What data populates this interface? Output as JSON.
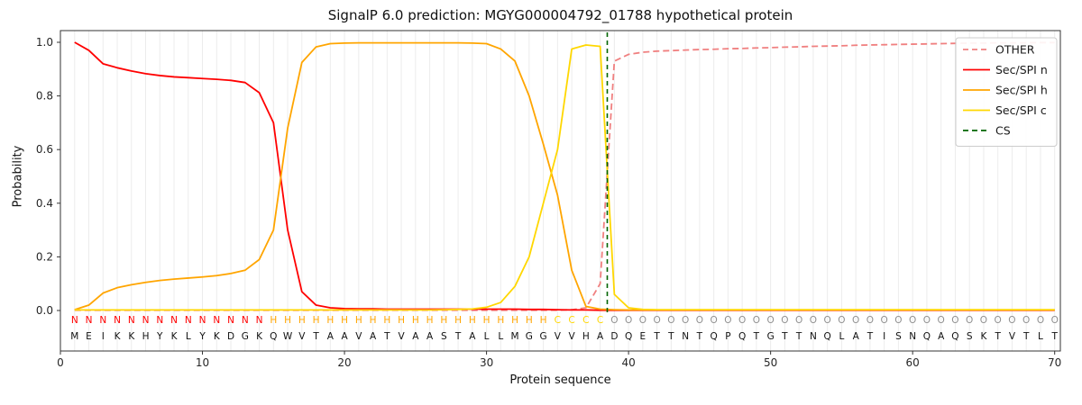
{
  "chart_data": {
    "type": "line",
    "title": "SignalP 6.0 prediction: MGYG000004792_01788 hypothetical protein",
    "xlabel": "Protein sequence",
    "ylabel": "Probability",
    "xlim": [
      0,
      70.4
    ],
    "ylim": [
      -0.15,
      1.04
    ],
    "xticks": [
      0,
      10,
      20,
      30,
      40,
      50,
      60,
      70
    ],
    "yticks": [
      0.0,
      0.2,
      0.4,
      0.6,
      0.8,
      1.0
    ],
    "grid": "vertical-per-residue",
    "grid_color": "#ececec",
    "legend_position": "upper right",
    "sequence": "MEIKKHYKLYKDGKQWVTAAVATVAASTALLMGGVVHADQETTNTQPQTGTTNQLATISNQAQSKTVTLT",
    "region_labels": "NNNNNNNNNNNNNNHHHHHHHHHHHHHHHHHHHHCCCCOOOOOOOOOOOOOOOOOOOOOOOOOOOOOOOO",
    "region_colors": {
      "N": "#ff0000",
      "H": "#ffa500",
      "C": "#ffd700",
      "O": "#8f8f8f"
    },
    "series": [
      {
        "name": "OTHER",
        "color": "#f08080",
        "dash": true,
        "values": [
          0.001,
          0.001,
          0.001,
          0.001,
          0.001,
          0.001,
          0.001,
          0.001,
          0.001,
          0.001,
          0.001,
          0.001,
          0.001,
          0.001,
          0.001,
          0.001,
          0.001,
          0.001,
          0.001,
          0.001,
          0.001,
          0.001,
          0.001,
          0.001,
          0.001,
          0.001,
          0.001,
          0.001,
          0.001,
          0.001,
          0.001,
          0.001,
          0.001,
          0.001,
          0.001,
          0.003,
          0.01,
          0.1,
          0.93,
          0.955,
          0.963,
          0.967,
          0.969,
          0.971,
          0.973,
          0.974,
          0.976,
          0.977,
          0.979,
          0.98,
          0.982,
          0.983,
          0.985,
          0.986,
          0.987,
          0.989,
          0.99,
          0.991,
          0.992,
          0.993,
          0.994,
          0.995,
          0.996,
          0.997,
          0.997,
          0.998,
          0.998,
          0.998,
          0.999,
          0.999
        ]
      },
      {
        "name": "Sec/SPI n",
        "color": "#ff0000",
        "dash": false,
        "values": [
          1.0,
          0.97,
          0.92,
          0.905,
          0.893,
          0.883,
          0.876,
          0.871,
          0.868,
          0.865,
          0.862,
          0.858,
          0.85,
          0.812,
          0.7,
          0.3,
          0.07,
          0.02,
          0.01,
          0.007,
          0.006,
          0.006,
          0.005,
          0.005,
          0.005,
          0.005,
          0.005,
          0.005,
          0.005,
          0.005,
          0.005,
          0.005,
          0.004,
          0.004,
          0.003,
          0.002,
          0.002,
          0.001,
          0.001,
          0.001,
          0.001,
          0.001,
          0.001,
          0.001,
          0.001,
          0.001,
          0.001,
          0.001,
          0.001,
          0.001,
          0.001,
          0.001,
          0.001,
          0.001,
          0.001,
          0.001,
          0.001,
          0.001,
          0.001,
          0.001,
          0.001,
          0.001,
          0.001,
          0.001,
          0.001,
          0.001,
          0.001,
          0.001,
          0.001,
          0.001
        ]
      },
      {
        "name": "Sec/SPI h",
        "color": "#ffa500",
        "dash": false,
        "values": [
          0.003,
          0.02,
          0.065,
          0.085,
          0.096,
          0.105,
          0.112,
          0.117,
          0.121,
          0.125,
          0.13,
          0.138,
          0.15,
          0.19,
          0.3,
          0.68,
          0.925,
          0.983,
          0.995,
          0.997,
          0.998,
          0.998,
          0.998,
          0.998,
          0.998,
          0.998,
          0.998,
          0.998,
          0.997,
          0.995,
          0.975,
          0.93,
          0.8,
          0.62,
          0.43,
          0.15,
          0.015,
          0.005,
          0.003,
          0.002,
          0.002,
          0.002,
          0.002,
          0.002,
          0.002,
          0.002,
          0.002,
          0.002,
          0.002,
          0.002,
          0.002,
          0.002,
          0.002,
          0.002,
          0.002,
          0.002,
          0.002,
          0.002,
          0.002,
          0.002,
          0.002,
          0.002,
          0.002,
          0.002,
          0.002,
          0.002,
          0.002,
          0.002,
          0.002,
          0.002
        ]
      },
      {
        "name": "Sec/SPI c",
        "color": "#ffd700",
        "dash": false,
        "values": [
          0.002,
          0.002,
          0.002,
          0.002,
          0.002,
          0.002,
          0.002,
          0.002,
          0.002,
          0.002,
          0.002,
          0.002,
          0.002,
          0.002,
          0.002,
          0.002,
          0.002,
          0.002,
          0.002,
          0.002,
          0.002,
          0.002,
          0.002,
          0.002,
          0.002,
          0.002,
          0.003,
          0.004,
          0.006,
          0.012,
          0.03,
          0.09,
          0.2,
          0.4,
          0.6,
          0.975,
          0.99,
          0.985,
          0.06,
          0.01,
          0.004,
          0.003,
          0.003,
          0.003,
          0.003,
          0.003,
          0.003,
          0.003,
          0.003,
          0.003,
          0.003,
          0.003,
          0.003,
          0.003,
          0.003,
          0.003,
          0.003,
          0.003,
          0.003,
          0.003,
          0.003,
          0.003,
          0.003,
          0.003,
          0.003,
          0.003,
          0.003,
          0.003,
          0.003,
          0.003
        ]
      },
      {
        "name": "CS",
        "color": "#006400",
        "dash": true,
        "type": "vline",
        "x": 38.5
      }
    ]
  }
}
